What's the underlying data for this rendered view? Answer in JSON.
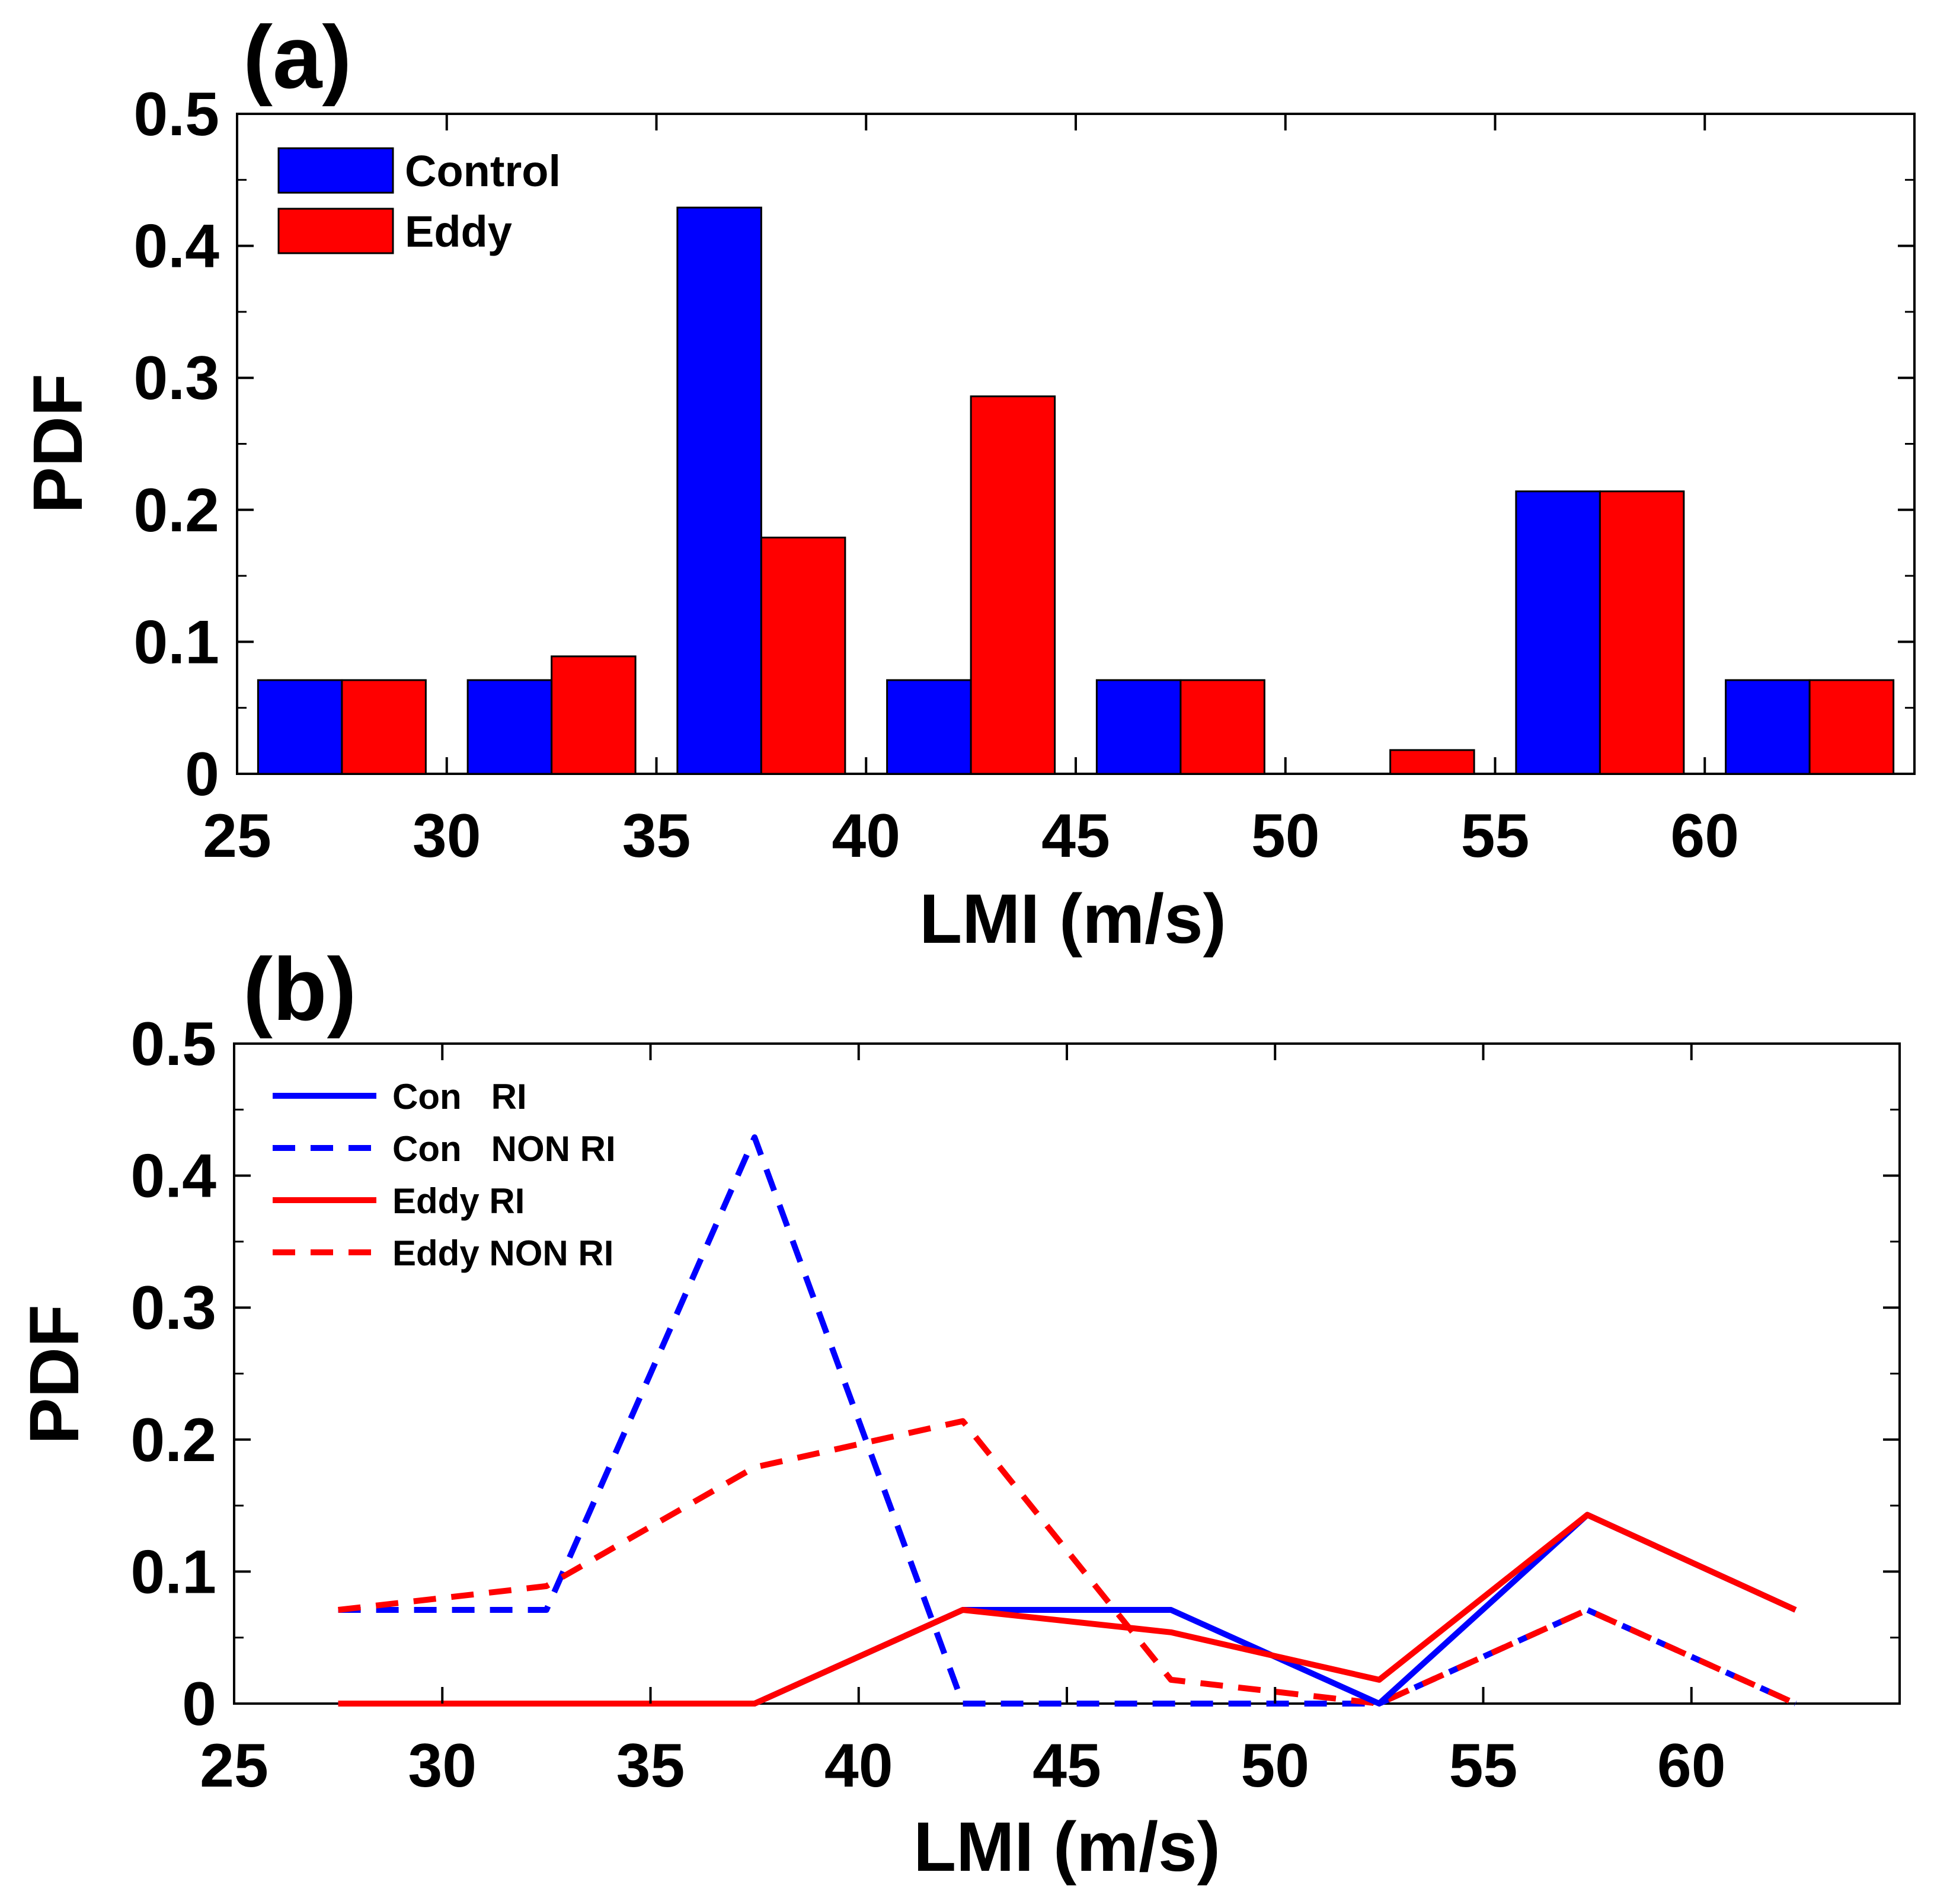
{
  "chart_data": [
    {
      "type": "bar",
      "panel_label": "(a)",
      "title": "",
      "xlabel": "LMI (m/s)",
      "ylabel": "PDF",
      "xlim": [
        25,
        65
      ],
      "ylim": [
        0,
        0.5
      ],
      "xticks": [
        "25",
        "30",
        "35",
        "40",
        "45",
        "50",
        "55",
        "60"
      ],
      "yticks": [
        "0",
        "0.1",
        "0.2",
        "0.3",
        "0.4",
        "0.5"
      ],
      "categories": [
        "27.5",
        "32.5",
        "37.5",
        "42.5",
        "47.5",
        "52.5",
        "57.5",
        "62.5"
      ],
      "series": [
        {
          "name": "Control",
          "color": "#0000ff",
          "values": [
            0.071,
            0.071,
            0.429,
            0.071,
            0.071,
            0.0,
            0.214,
            0.071
          ]
        },
        {
          "name": "Eddy",
          "color": "#ff0000",
          "values": [
            0.071,
            0.089,
            0.179,
            0.286,
            0.071,
            0.018,
            0.214,
            0.071
          ]
        }
      ],
      "legend_position": "top-left",
      "grid": false
    },
    {
      "type": "line",
      "panel_label": "(b)",
      "title": "",
      "xlabel": "LMI (m/s)",
      "ylabel": "PDF",
      "xlim": [
        25,
        65
      ],
      "ylim": [
        0,
        0.5
      ],
      "xticks": [
        "25",
        "30",
        "35",
        "40",
        "45",
        "50",
        "55",
        "60"
      ],
      "yticks": [
        "0",
        "0.1",
        "0.2",
        "0.3",
        "0.4",
        "0.5"
      ],
      "x": [
        27.5,
        32.5,
        37.5,
        42.5,
        47.5,
        52.5,
        57.5,
        62.5
      ],
      "series": [
        {
          "name": "Con   RI",
          "color": "#0000ff",
          "style": "solid",
          "values": [
            0.0,
            0.0,
            0.0,
            0.071,
            0.071,
            0.0,
            0.143,
            0.071
          ]
        },
        {
          "name": "Con   NON RI",
          "color": "#0000ff",
          "style": "dashed",
          "values": [
            0.071,
            0.071,
            0.429,
            0.0,
            0.0,
            0.0,
            0.071,
            0.0
          ]
        },
        {
          "name": "Eddy RI",
          "color": "#ff0000",
          "style": "solid",
          "values": [
            0.0,
            0.0,
            0.0,
            0.071,
            0.054,
            0.018,
            0.143,
            0.071
          ]
        },
        {
          "name": "Eddy NON RI",
          "color": "#ff0000",
          "style": "dashed",
          "values": [
            0.071,
            0.089,
            0.179,
            0.214,
            0.018,
            0.0,
            0.071,
            0.0
          ]
        }
      ],
      "legend_position": "top-left",
      "grid": false
    }
  ]
}
